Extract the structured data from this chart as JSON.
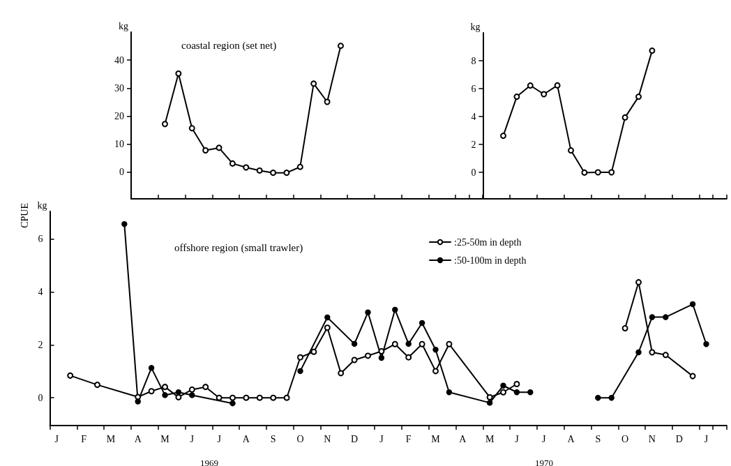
{
  "chart_data": [
    {
      "type": "line",
      "title": "coastal region (set net)",
      "ylabel": "kg",
      "marker": "circle",
      "tick_labels": "y",
      "grid": false,
      "legend": false,
      "categories": [
        null,
        null,
        null,
        null,
        null,
        null,
        null,
        null,
        null,
        null,
        null,
        null,
        null,
        null,
        null,
        null,
        null,
        null,
        null,
        null,
        null,
        null,
        null,
        null,
        null,
        null
      ],
      "ylim": [
        -9.5,
        50
      ],
      "yticks": [
        0,
        10,
        20,
        30,
        40
      ],
      "series": [
        {
          "color": "#000000",
          "values": [
            null,
            null,
            17.2,
            35.2,
            15.7,
            7.8,
            8.7,
            3.1,
            1.7,
            0.6,
            -0.2,
            -0.2,
            1.9,
            31.6,
            25.1,
            45.1,
            null,
            null,
            null,
            null,
            null,
            null,
            null,
            null,
            null,
            null
          ]
        }
      ]
    },
    {
      "type": "line",
      "ylabel": "kg",
      "marker": "circle",
      "tick_labels": "y",
      "grid": false,
      "legend": false,
      "categories": [
        null,
        null,
        null,
        null,
        null,
        null,
        null,
        null,
        null,
        null,
        null,
        null,
        null,
        null,
        null,
        null,
        null,
        null
      ],
      "ylim": [
        -1.9,
        10
      ],
      "yticks": [
        0,
        2,
        4,
        6,
        8
      ],
      "series": [
        {
          "color": "#000000",
          "values": [
            null,
            2.62,
            5.42,
            6.22,
            5.6,
            6.23,
            1.57,
            -0.02,
            0,
            0,
            3.93,
            5.42,
            8.72,
            null,
            null,
            null,
            null,
            null
          ]
        }
      ]
    },
    {
      "type": "line",
      "title": "offshore region (small trawler)",
      "ylabel": "kg",
      "marker": "circle",
      "grid": false,
      "legend": "top right",
      "annotations": [
        "CPUE",
        "1969",
        "1970"
      ],
      "categories": [
        "J",
        null,
        "F",
        null,
        "M",
        null,
        "A",
        null,
        "M",
        null,
        "J",
        null,
        "J",
        null,
        "A",
        null,
        "S",
        null,
        "O",
        null,
        "N",
        null,
        "D",
        null,
        "J",
        null,
        "F",
        null,
        "M",
        null,
        "A",
        null,
        "M",
        null,
        "J",
        null,
        "J",
        null,
        "A",
        null,
        "S",
        null,
        "O",
        null,
        "N",
        null,
        "D",
        null,
        "J",
        null
      ],
      "ylim": [
        -1.05,
        7.05
      ],
      "yticks": [
        0,
        2,
        4,
        6
      ],
      "series": [
        {
          "name": ":25-50m in depth",
          "color": "#000000",
          "values": [
            null,
            0.84,
            null,
            0.49,
            null,
            null,
            0.03,
            0.25,
            0.41,
            0.02,
            0.31,
            0.41,
            0,
            0,
            0,
            0,
            0,
            0,
            1.53,
            1.74,
            2.65,
            0.93,
            1.43,
            1.59,
            1.76,
            2.03,
            1.53,
            2.03,
            1.01,
            2.03,
            null,
            null,
            0.02,
            0.21,
            0.52,
            null,
            null,
            null,
            null,
            null,
            null,
            null,
            null,
            null,
            null,
            null,
            null,
            null,
            null,
            null
          ]
        },
        {
          "color": "#000000",
          "values": [
            null,
            null,
            null,
            null,
            null,
            null,
            null,
            null,
            null,
            null,
            null,
            null,
            null,
            null,
            null,
            null,
            null,
            null,
            null,
            null,
            null,
            null,
            null,
            null,
            null,
            null,
            null,
            null,
            null,
            null,
            null,
            null,
            null,
            null,
            null,
            null,
            null,
            null,
            null,
            null,
            null,
            null,
            2.63,
            4.37,
            1.72,
            1.62,
            null,
            0.82,
            null,
            null
          ]
        },
        {
          "name": ":50-100m in depth",
          "color": "#000000",
          "values": [
            null,
            null,
            null,
            null,
            null,
            6.57,
            -0.14,
            1.13,
            0.1,
            0.21,
            0.1,
            null,
            null,
            -0.21,
            null,
            null,
            null,
            null,
            null,
            null,
            null,
            null,
            null,
            null,
            null,
            null,
            null,
            null,
            null,
            null,
            null,
            null,
            null,
            null,
            null,
            null,
            null,
            null,
            null,
            null,
            null,
            null,
            null,
            null,
            null,
            null,
            null,
            null,
            null,
            null
          ]
        },
        {
          "color": "#000000",
          "values": [
            null,
            null,
            null,
            null,
            null,
            null,
            null,
            null,
            null,
            null,
            null,
            null,
            null,
            null,
            null,
            null,
            null,
            null,
            1.01,
            null,
            3.04,
            null,
            2.04,
            3.23,
            1.51,
            3.33,
            2.04,
            2.83,
            1.82,
            0.21,
            null,
            null,
            -0.19,
            0.46,
            0.21,
            0.21,
            null,
            null,
            null,
            null,
            null,
            null,
            null,
            null,
            null,
            null,
            null,
            null,
            null,
            null
          ]
        },
        {
          "color": "#000000",
          "values": [
            null,
            null,
            null,
            null,
            null,
            null,
            null,
            null,
            null,
            null,
            null,
            null,
            null,
            null,
            null,
            null,
            null,
            null,
            null,
            null,
            null,
            null,
            null,
            null,
            null,
            null,
            null,
            null,
            null,
            null,
            null,
            null,
            null,
            null,
            null,
            null,
            null,
            null,
            null,
            null,
            0,
            0,
            null,
            1.72,
            3.05,
            3.05,
            null,
            3.54,
            2.03,
            null
          ]
        }
      ]
    }
  ]
}
